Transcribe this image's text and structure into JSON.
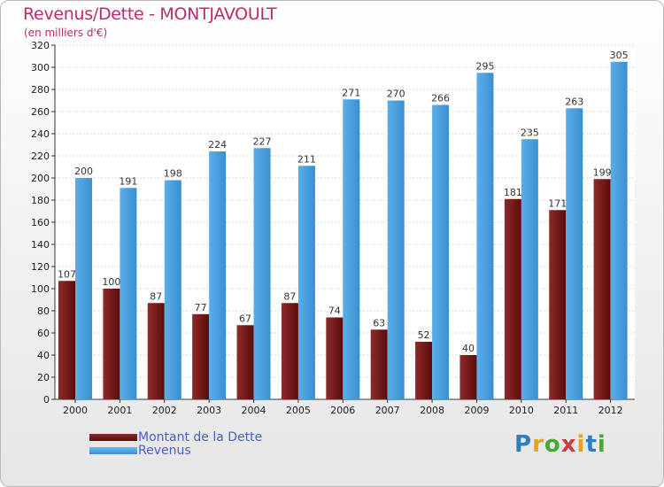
{
  "chart_data": {
    "type": "bar",
    "title": "Revenus/Dette - MONTJAVOULT",
    "subtitle": "(en milliers d'€)",
    "categories": [
      "2000",
      "2001",
      "2002",
      "2003",
      "2004",
      "2005",
      "2006",
      "2007",
      "2008",
      "2009",
      "2010",
      "2011",
      "2012"
    ],
    "series": [
      {
        "name": "Montant de la Dette",
        "color": "#7a1a1a",
        "values": [
          107,
          100,
          87,
          77,
          67,
          87,
          74,
          63,
          52,
          40,
          181,
          171,
          199
        ]
      },
      {
        "name": "Revenus",
        "color": "#4a9ee0",
        "values": [
          200,
          191,
          198,
          224,
          227,
          211,
          271,
          270,
          266,
          295,
          235,
          263,
          305
        ]
      }
    ],
    "ylim": [
      0,
      320
    ],
    "ytick_step": 20,
    "xlabel": "",
    "ylabel": "",
    "grid": true,
    "legend": "bottom-left"
  },
  "logo": {
    "letters": [
      "P",
      "r",
      "o",
      "x",
      "i",
      "t",
      "i"
    ],
    "colors": [
      "#2a7fc4",
      "#e8a020",
      "#4aa832",
      "#d43a3a",
      "#e8a020",
      "#2a7fc4",
      "#4aa832"
    ]
  }
}
